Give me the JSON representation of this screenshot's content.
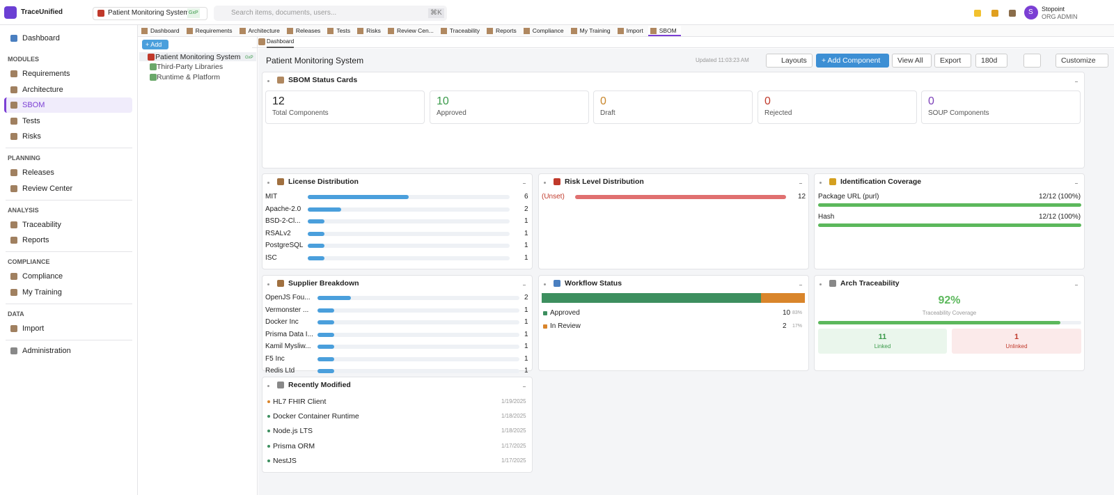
{
  "header": {
    "brand": "TraceUnified",
    "project": "Patient Monitoring System",
    "project_badge": "GxP",
    "search_placeholder": "Search items, documents, users...",
    "search_shortcut": "⌘K",
    "user_initial": "S",
    "user_name": "Stopoint",
    "user_role": "ORG ADMIN"
  },
  "sidebar": {
    "top": "Dashboard",
    "sections": [
      {
        "title": "MODULES",
        "items": [
          "Requirements",
          "Architecture",
          "SBOM",
          "Tests",
          "Risks"
        ]
      },
      {
        "title": "PLANNING",
        "items": [
          "Releases",
          "Review Center"
        ]
      },
      {
        "title": "ANALYSIS",
        "items": [
          "Traceability",
          "Reports"
        ]
      },
      {
        "title": "COMPLIANCE",
        "items": [
          "Compliance",
          "My Training"
        ]
      },
      {
        "title": "DATA",
        "items": [
          "Import"
        ]
      }
    ],
    "active": "SBOM",
    "bottom": "Administration"
  },
  "tabs": {
    "items": [
      "Dashboard",
      "Requirements",
      "Architecture",
      "Releases",
      "Tests",
      "Risks",
      "Review Cen...",
      "Traceability",
      "Reports",
      "Compliance",
      "My Training",
      "Import",
      "SBOM"
    ],
    "active": 12
  },
  "subtab": "Dashboard",
  "tree": {
    "add": "+ Add",
    "root": "Patient Monitoring System",
    "root_badge": "GxP",
    "children": [
      "Third-Party Libraries",
      "Runtime & Platform"
    ]
  },
  "toolbar": {
    "title": "Patient Monitoring System",
    "updated": "Updated 11:03:23 AM",
    "buttons": [
      "Layouts",
      "+ Add Component",
      "View All",
      "Export",
      "180d",
      "Customize"
    ]
  },
  "status_cards": {
    "title": "SBOM Status Cards",
    "cards": [
      {
        "value": 12,
        "label": "Total Components",
        "color": "#222222"
      },
      {
        "value": 10,
        "label": "Approved",
        "color": "#3a9a4a"
      },
      {
        "value": 0,
        "label": "Draft",
        "color": "#c8862b"
      },
      {
        "value": 0,
        "label": "Rejected",
        "color": "#c0392b"
      },
      {
        "value": 0,
        "label": "SOUP Components",
        "color": "#7b3fb8"
      }
    ]
  },
  "license": {
    "title": "License Distribution",
    "color": "#4a9fdc",
    "rows": [
      {
        "label": "MIT",
        "value": 6
      },
      {
        "label": "Apache-2.0",
        "value": 2
      },
      {
        "label": "BSD-2-Cl...",
        "value": 1
      },
      {
        "label": "RSALv2",
        "value": 1
      },
      {
        "label": "PostgreSQL",
        "value": 1
      },
      {
        "label": "ISC",
        "value": 1
      }
    ]
  },
  "risk": {
    "title": "Risk Level Distribution",
    "color": "#e07070",
    "rows": [
      {
        "label": "(Unset)",
        "value": 12
      }
    ]
  },
  "identification": {
    "title": "Identification Coverage",
    "color": "#5cb85c",
    "rows": [
      {
        "label": "Package URL (purl)",
        "value": 100,
        "value_label": "12/12 (100%)"
      },
      {
        "label": "Hash",
        "value": 100,
        "value_label": "12/12 (100%)"
      }
    ]
  },
  "supplier": {
    "title": "Supplier Breakdown",
    "color": "#4a9fdc",
    "rows": [
      {
        "label": "OpenJS Fou...",
        "value": 2
      },
      {
        "label": "Vermonster ...",
        "value": 1
      },
      {
        "label": "Docker Inc",
        "value": 1
      },
      {
        "label": "Prisma Data I...",
        "value": 1
      },
      {
        "label": "Kamil Mysliw...",
        "value": 1
      },
      {
        "label": "F5 Inc",
        "value": 1
      },
      {
        "label": "Redis Ltd",
        "value": 1
      }
    ]
  },
  "workflow": {
    "title": "Workflow Status",
    "segments": [
      {
        "label": "Approved",
        "value": 10,
        "share": {
          "value": 83,
          "label": "83%"
        },
        "color": "#3d8f5f"
      },
      {
        "label": "In Review",
        "value": 2,
        "share": {
          "value": 17,
          "label": "17%"
        },
        "color": "#d9852b"
      }
    ]
  },
  "arch": {
    "title": "Arch Traceability",
    "coverage": {
      "value": 92,
      "label": "92%"
    },
    "coverage_label": "Traceability Coverage",
    "linked": {
      "value": 11,
      "label": "Linked"
    },
    "unlinked": {
      "value": 1,
      "label": "Unlinked"
    }
  },
  "recent": {
    "title": "Recently Modified",
    "items": [
      {
        "name": "HL7 FHIR Client",
        "date": "1/19/2025",
        "color": "#d9852b"
      },
      {
        "name": "Docker Container Runtime",
        "date": "1/18/2025",
        "color": "#3d8f5f"
      },
      {
        "name": "Node.js LTS",
        "date": "1/18/2025",
        "color": "#3d8f5f"
      },
      {
        "name": "Prisma ORM",
        "date": "1/17/2025",
        "color": "#3d8f5f"
      },
      {
        "name": "NestJS",
        "date": "1/17/2025",
        "color": "#3d8f5f"
      }
    ]
  }
}
